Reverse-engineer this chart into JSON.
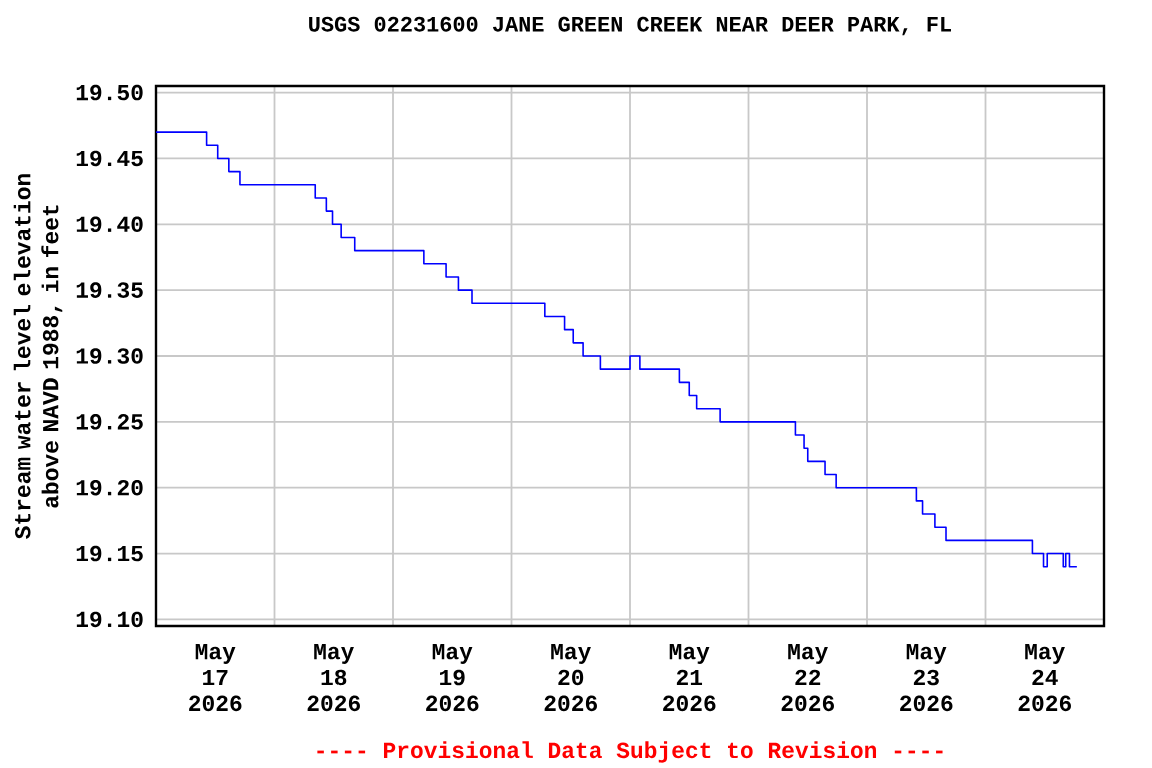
{
  "chart_data": {
    "type": "step",
    "title": "USGS 02231600 JANE GREEN CREEK NEAR DEER PARK, FL",
    "ylabel": "Stream water level elevation above NAVD 1988, in feet",
    "annotations": [
      "---- Provisional Data Subject to Revision ----"
    ],
    "color": "#0000ff",
    "x": [
      "2026-05-17T00:00",
      "2026-05-17T10:15",
      "2026-05-17T12:30",
      "2026-05-17T14:45",
      "2026-05-17T17:00",
      "2026-05-18T08:15",
      "2026-05-18T10:30",
      "2026-05-18T11:45",
      "2026-05-18T13:30",
      "2026-05-18T16:15",
      "2026-05-19T06:15",
      "2026-05-19T10:45",
      "2026-05-19T13:15",
      "2026-05-19T16:00",
      "2026-05-20T06:45",
      "2026-05-20T10:45",
      "2026-05-20T12:30",
      "2026-05-20T14:30",
      "2026-05-20T18:00",
      "2026-05-21T00:00",
      "2026-05-21T02:00",
      "2026-05-21T10:00",
      "2026-05-21T12:00",
      "2026-05-21T13:30",
      "2026-05-21T18:15",
      "2026-05-22T09:30",
      "2026-05-22T11:15",
      "2026-05-22T12:00",
      "2026-05-22T15:30",
      "2026-05-22T17:45",
      "2026-05-23T10:00",
      "2026-05-23T11:15",
      "2026-05-23T13:45",
      "2026-05-23T16:00",
      "2026-05-24T09:30",
      "2026-05-24T11:45",
      "2026-05-24T12:30",
      "2026-05-24T15:45",
      "2026-05-24T16:15",
      "2026-05-24T17:00",
      "2026-05-24T18:30"
    ],
    "values": [
      19.47,
      19.46,
      19.45,
      19.44,
      19.43,
      19.42,
      19.41,
      19.4,
      19.39,
      19.38,
      19.37,
      19.36,
      19.35,
      19.34,
      19.33,
      19.32,
      19.31,
      19.3,
      19.29,
      19.3,
      19.29,
      19.28,
      19.27,
      19.26,
      19.25,
      19.24,
      19.23,
      19.22,
      19.21,
      19.2,
      19.19,
      19.18,
      19.17,
      19.16,
      19.15,
      19.14,
      19.15,
      19.14,
      19.15,
      19.14,
      19.14
    ],
    "xlim": [
      "2026-05-17T00:00",
      "2026-05-25T00:00"
    ],
    "xticks": [
      {
        "value": "2026-05-17T12:00",
        "label": "May 17 2026"
      },
      {
        "value": "2026-05-18T12:00",
        "label": "May 18 2026"
      },
      {
        "value": "2026-05-19T12:00",
        "label": "May 19 2026"
      },
      {
        "value": "2026-05-20T12:00",
        "label": "May 20 2026"
      },
      {
        "value": "2026-05-21T12:00",
        "label": "May 21 2026"
      },
      {
        "value": "2026-05-22T12:00",
        "label": "May 22 2026"
      },
      {
        "value": "2026-05-23T12:00",
        "label": "May 23 2026"
      },
      {
        "value": "2026-05-24T12:00",
        "label": "May 24 2026"
      },
      {
        "value": "2026-05-18T00:00",
        "label": null
      },
      {
        "value": "2026-05-19T00:00",
        "label": null
      },
      {
        "value": "2026-05-20T00:00",
        "label": null
      },
      {
        "value": "2026-05-21T00:00",
        "label": null
      },
      {
        "value": "2026-05-22T00:00",
        "label": null
      },
      {
        "value": "2026-05-23T00:00",
        "label": null
      },
      {
        "value": "2026-05-24T00:00",
        "label": null
      }
    ],
    "ylim": [
      19.095,
      19.505
    ],
    "yticks": [
      {
        "value": 19.1,
        "label": "19.10"
      },
      19.15,
      {
        "value": 19.2,
        "label": "19.20"
      },
      19.25,
      {
        "value": 19.3,
        "label": "19.30"
      },
      19.35,
      {
        "value": 19.4,
        "label": "19.40"
      },
      19.45,
      {
        "value": 19.5,
        "label": "19.50"
      }
    ],
    "grid": true,
    "marker": "none",
    "line_style": "solid"
  }
}
